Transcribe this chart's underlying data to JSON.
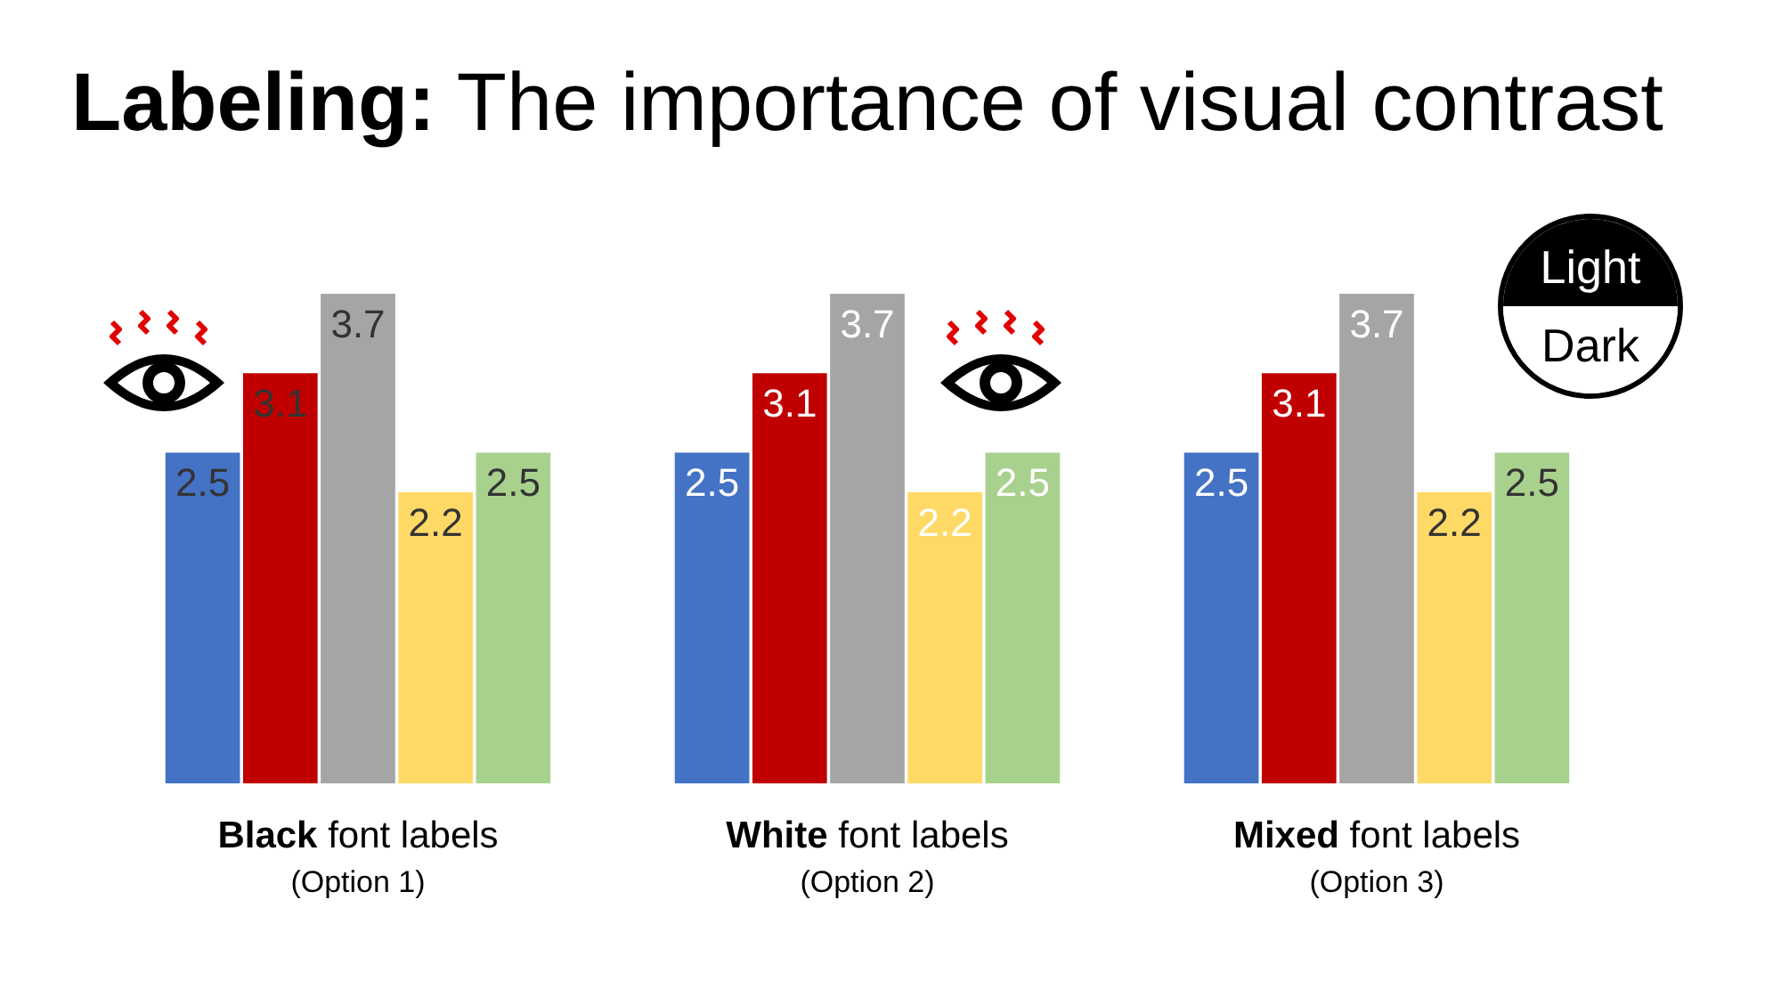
{
  "chart_data": [
    {
      "type": "bar",
      "title": "Black font labels",
      "subtitle": "(Option 1)",
      "annotations": [
        "Labeling: The importance of visual contrast"
      ],
      "categories": [
        null,
        null,
        null,
        null,
        null
      ],
      "values": [
        2.5,
        3.1,
        3.7,
        2.2,
        2.5
      ],
      "colors": [
        "#4472c4",
        "#c00000",
        "#a5a5a5",
        "#ffd966",
        "#a9d18e"
      ],
      "data_labels": true,
      "grid": false
    },
    {
      "type": "bar",
      "title": "White font labels",
      "subtitle": "(Option 2)",
      "categories": [
        null,
        null,
        null,
        null,
        null
      ],
      "values": [
        2.5,
        3.1,
        3.7,
        2.2,
        2.5
      ],
      "colors": [
        "#4472c4",
        "#c00000",
        "#a5a5a5",
        "#ffd966",
        "#a9d18e"
      ],
      "data_labels": true,
      "grid": false
    },
    {
      "type": "bar",
      "title": "Mixed font labels",
      "subtitle": "(Option 3)",
      "annotations": [
        "Light",
        "Dark"
      ],
      "categories": [
        null,
        null,
        null,
        null,
        null
      ],
      "values": [
        2.5,
        3.1,
        3.7,
        2.2,
        2.5
      ],
      "colors": [
        "#4472c4",
        "#c00000",
        "#a5a5a5",
        "#ffd966",
        "#a9d18e"
      ],
      "data_labels": true,
      "grid": false
    }
  ]
}
